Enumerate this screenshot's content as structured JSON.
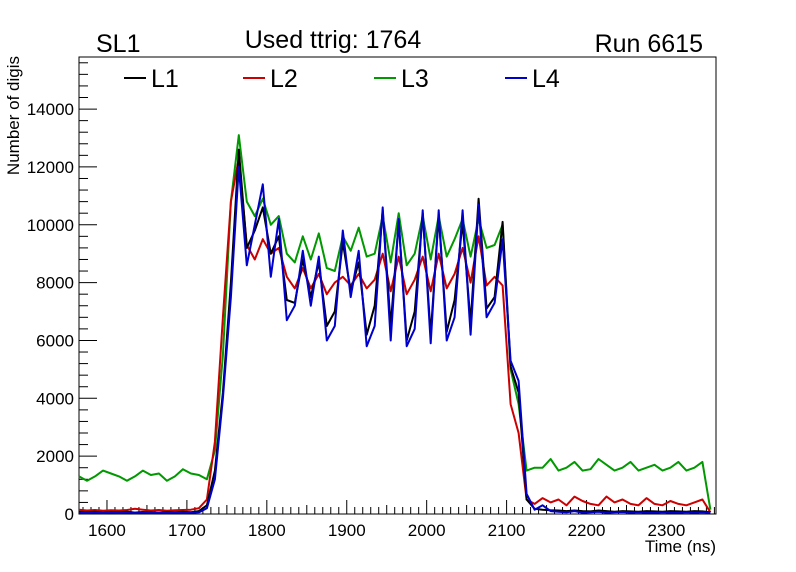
{
  "header": {
    "left_label": "SL1",
    "title": "Used ttrig: 1764",
    "right_label": "Run 6615"
  },
  "chart_data": {
    "type": "line",
    "title": "Used ttrig: 1764",
    "xlabel": "Time (ns)",
    "ylabel": "Number of digis",
    "xlim": [
      1565,
      2362
    ],
    "ylim": [
      0,
      15800
    ],
    "x_ticks": [
      1600,
      1700,
      1800,
      1900,
      2000,
      2100,
      2200,
      2300
    ],
    "x_tick_labels": [
      "1600",
      "1700",
      "1800",
      "1900",
      "2000",
      "2100",
      "2200",
      "2300"
    ],
    "y_ticks": [
      0,
      2000,
      4000,
      6000,
      8000,
      10000,
      12000,
      14000
    ],
    "y_tick_labels": [
      "0",
      "2000",
      "4000",
      "6000",
      "8000",
      "10000",
      "12000",
      "14000"
    ],
    "grid": false,
    "legend_position": "top",
    "x": [
      1565,
      1575,
      1585,
      1595,
      1605,
      1615,
      1625,
      1635,
      1645,
      1655,
      1665,
      1675,
      1685,
      1695,
      1705,
      1715,
      1725,
      1735,
      1745,
      1755,
      1765,
      1775,
      1785,
      1795,
      1805,
      1815,
      1825,
      1835,
      1845,
      1855,
      1865,
      1875,
      1885,
      1895,
      1905,
      1915,
      1925,
      1935,
      1945,
      1955,
      1965,
      1975,
      1985,
      1995,
      2005,
      2015,
      2025,
      2035,
      2045,
      2055,
      2065,
      2075,
      2085,
      2095,
      2105,
      2115,
      2125,
      2135,
      2145,
      2155,
      2165,
      2175,
      2185,
      2195,
      2205,
      2215,
      2225,
      2235,
      2245,
      2255,
      2265,
      2275,
      2285,
      2295,
      2305,
      2315,
      2325,
      2335,
      2345,
      2355
    ],
    "series": [
      {
        "name": "L1",
        "color": "#000000",
        "values": [
          80,
          60,
          80,
          50,
          70,
          60,
          80,
          50,
          70,
          60,
          50,
          70,
          60,
          80,
          60,
          100,
          300,
          1500,
          4200,
          8000,
          12600,
          9200,
          9800,
          10600,
          9000,
          9600,
          7400,
          7300,
          8800,
          7500,
          8700,
          6500,
          7000,
          9400,
          7700,
          8700,
          6200,
          7200,
          10500,
          6500,
          10100,
          6000,
          7000,
          10400,
          6200,
          10300,
          6300,
          7400,
          10100,
          6600,
          10900,
          7100,
          7500,
          10100,
          5100,
          4200,
          500,
          180,
          150,
          130,
          120,
          100,
          120,
          100,
          90,
          120,
          100,
          80,
          100,
          90,
          80,
          100,
          90,
          80,
          100,
          90,
          80,
          100,
          90,
          60
        ]
      },
      {
        "name": "L2",
        "color": "#cc0000",
        "values": [
          150,
          120,
          140,
          110,
          130,
          120,
          140,
          180,
          150,
          120,
          140,
          110,
          130,
          140,
          150,
          200,
          500,
          2500,
          6800,
          10800,
          12300,
          9300,
          8800,
          9500,
          9000,
          9200,
          8200,
          7800,
          8500,
          7800,
          8300,
          7600,
          8000,
          8200,
          7900,
          8300,
          7800,
          8100,
          9000,
          7700,
          8900,
          7600,
          8100,
          8900,
          7700,
          9000,
          7800,
          8300,
          9200,
          8000,
          9600,
          7900,
          8200,
          7900,
          3800,
          2800,
          500,
          350,
          550,
          400,
          500,
          300,
          600,
          450,
          350,
          300,
          600,
          400,
          500,
          350,
          300,
          550,
          350,
          300,
          450,
          350,
          300,
          400,
          500,
          60
        ]
      },
      {
        "name": "L3",
        "color": "#009900",
        "values": [
          1300,
          1150,
          1300,
          1500,
          1400,
          1300,
          1150,
          1300,
          1500,
          1350,
          1400,
          1150,
          1300,
          1550,
          1400,
          1350,
          1200,
          2200,
          5500,
          10800,
          13100,
          10800,
          10300,
          10900,
          10000,
          10300,
          9000,
          8700,
          9600,
          8800,
          9700,
          8500,
          8400,
          9600,
          9100,
          9900,
          8900,
          9000,
          10300,
          8700,
          10400,
          8600,
          9000,
          10300,
          8800,
          10300,
          8900,
          9500,
          10200,
          8900,
          10200,
          9200,
          9300,
          10000,
          5000,
          3800,
          1500,
          1600,
          1600,
          1900,
          1500,
          1600,
          1800,
          1500,
          1550,
          1900,
          1700,
          1500,
          1600,
          1800,
          1500,
          1600,
          1700,
          1500,
          1600,
          1800,
          1500,
          1600,
          1800,
          150
        ]
      },
      {
        "name": "L4",
        "color": "#0000cc",
        "values": [
          40,
          30,
          40,
          30,
          40,
          30,
          40,
          30,
          40,
          30,
          40,
          30,
          40,
          30,
          40,
          60,
          200,
          1200,
          4000,
          7500,
          12000,
          8600,
          10000,
          11400,
          8200,
          10200,
          6700,
          7200,
          9100,
          7200,
          8900,
          6000,
          6500,
          9800,
          7500,
          9100,
          5800,
          6500,
          10600,
          6000,
          10200,
          5800,
          6400,
          10500,
          5900,
          10500,
          6000,
          6800,
          10500,
          6200,
          10700,
          6800,
          7300,
          9500,
          5300,
          4600,
          700,
          150,
          300,
          100,
          80,
          60,
          100,
          50,
          60,
          80,
          50,
          60,
          70,
          50,
          60,
          50,
          40,
          60,
          50,
          40,
          60,
          50,
          60,
          40
        ]
      }
    ]
  }
}
